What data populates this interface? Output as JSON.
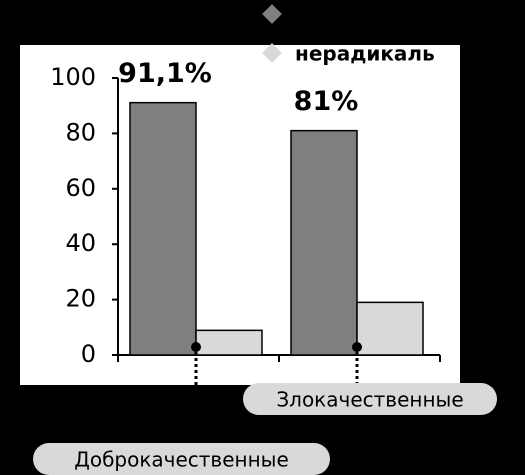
{
  "chart_data": {
    "type": "bar",
    "categories": [
      "Доброкачественные",
      "Злокачественные"
    ],
    "series": [
      {
        "color": "#7f7f7f",
        "values": [
          91.1,
          81
        ],
        "value_labels": [
          "91,1%",
          "81%"
        ]
      },
      {
        "name": "нерадикаль",
        "color": "#d9d9d9",
        "values": [
          8.9,
          19
        ]
      }
    ],
    "ylim": [
      0,
      100
    ],
    "yticks": [
      0,
      20,
      40,
      60,
      80,
      100
    ]
  }
}
